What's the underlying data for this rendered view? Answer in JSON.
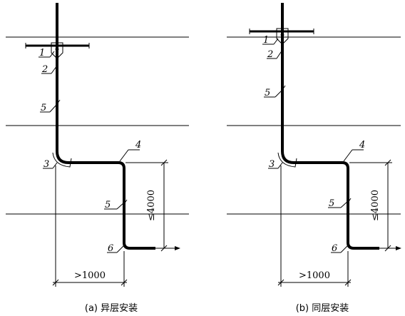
{
  "left": {
    "caption": "(a) 异层安装",
    "callouts": [
      "1",
      "2",
      "3",
      "4",
      "5",
      "5",
      "6"
    ],
    "dim_width": ">1000",
    "dim_height": "≤4000"
  },
  "right": {
    "caption": "(b) 同层安装",
    "callouts": [
      "1",
      "2",
      "3",
      "4",
      "5",
      "5",
      "6"
    ],
    "dim_width": ">1000",
    "dim_height": "≤4000"
  }
}
